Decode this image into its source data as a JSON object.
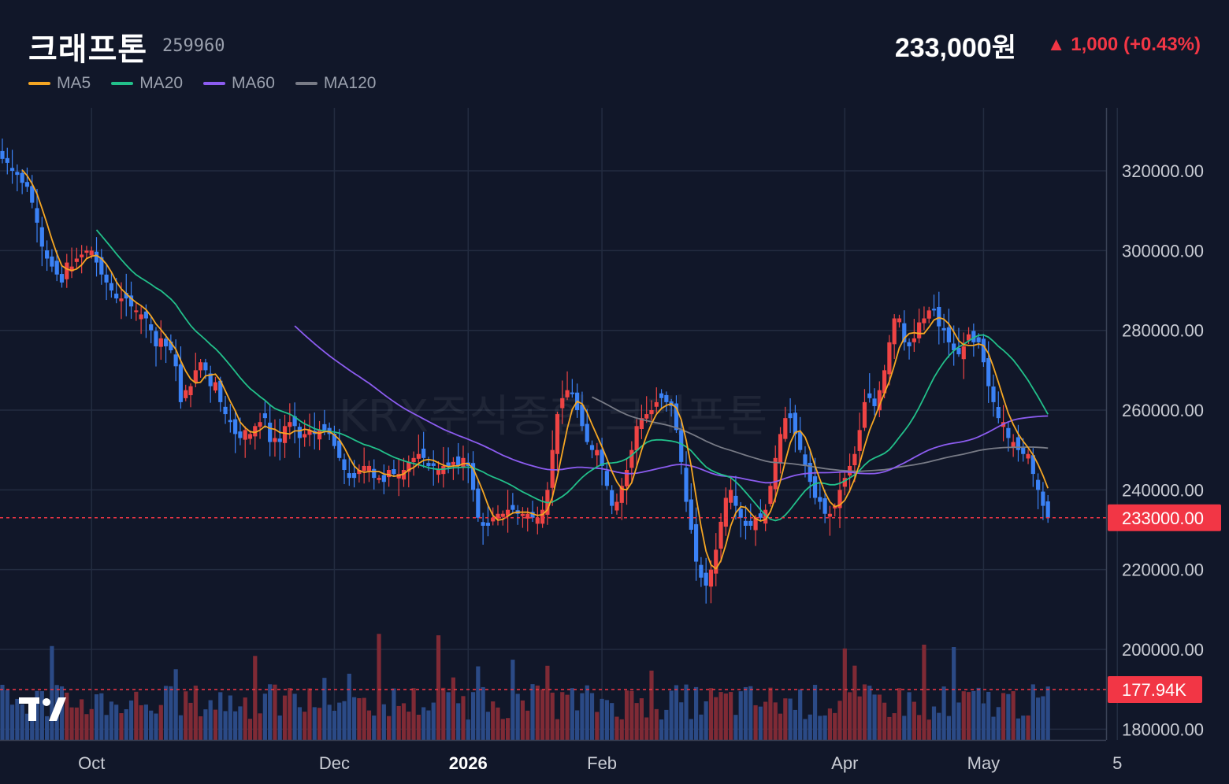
{
  "header": {
    "title": "크래프톤",
    "code": "259960",
    "price": "233,000원",
    "change": "▲ 1,000 (+0.43%)"
  },
  "legend": [
    {
      "label": "MA5",
      "color": "#f5a623"
    },
    {
      "label": "MA20",
      "color": "#22c08a"
    },
    {
      "label": "MA60",
      "color": "#8c5cf0"
    },
    {
      "label": "MA120",
      "color": "#787b86"
    }
  ],
  "watermark": "KRX주식종합  크래프톤",
  "colors": {
    "up": "#ef4444",
    "down": "#3b82f6",
    "background": "#111729",
    "grid": "#232c40",
    "price_tag": "#f23645"
  },
  "logo_text": "TV",
  "chart_data": {
    "type": "candlestick",
    "title": "크래프톤",
    "y_ticks": [
      "320000.00",
      "300000.00",
      "280000.00",
      "260000.00",
      "240000.00",
      "220000.00",
      "200000.00",
      "180000.00"
    ],
    "y_tick_values": [
      320000,
      300000,
      280000,
      260000,
      240000,
      220000,
      200000,
      180000
    ],
    "ylim": [
      177300,
      335800
    ],
    "x_ticks": [
      {
        "label": "Oct",
        "index": 18,
        "bold": false
      },
      {
        "label": "Dec",
        "index": 67,
        "bold": false
      },
      {
        "label": "2026",
        "index": 94,
        "bold": true
      },
      {
        "label": "Feb",
        "index": 121,
        "bold": false
      },
      {
        "label": "Apr",
        "index": 170,
        "bold": false
      },
      {
        "label": "May",
        "index": 198,
        "bold": false
      },
      {
        "label": "5",
        "index": 225,
        "bold": false
      }
    ],
    "last_price": 233000,
    "last_price_label": "233000.00",
    "last_volume_label": "177.94K",
    "closes": [
      323000,
      322000,
      320000,
      319000,
      317000,
      316000,
      312000,
      307000,
      301000,
      298000,
      296000,
      294000,
      292000,
      297000,
      296000,
      298000,
      299000,
      300000,
      300000,
      297000,
      294000,
      292000,
      290000,
      288000,
      288000,
      288000,
      286000,
      285000,
      284000,
      283000,
      280000,
      276000,
      278000,
      276000,
      275000,
      271000,
      262000,
      265000,
      266000,
      270000,
      272000,
      270000,
      266000,
      267000,
      262000,
      259000,
      257000,
      254000,
      253000,
      255000,
      254000,
      256000,
      257000,
      258000,
      252000,
      253000,
      252000,
      256000,
      257000,
      256000,
      253000,
      254000,
      255000,
      254000,
      255000,
      255000,
      254000,
      251000,
      248000,
      245000,
      243000,
      243000,
      245000,
      246000,
      246000,
      243000,
      243000,
      242000,
      245000,
      244000,
      244000,
      245000,
      247000,
      248000,
      249000,
      248000,
      246000,
      246000,
      245000,
      246000,
      246000,
      247000,
      246000,
      248000,
      246000,
      240000,
      233000,
      231000,
      231000,
      233000,
      234000,
      234000,
      235000,
      235000,
      234000,
      234000,
      234000,
      233000,
      233000,
      235000,
      240000,
      250000,
      259000,
      263000,
      265000,
      264000,
      260000,
      256000,
      252000,
      250000,
      250000,
      246000,
      241000,
      236000,
      237000,
      241000,
      245000,
      250000,
      256000,
      258000,
      259000,
      260000,
      262000,
      263000,
      262000,
      261000,
      255000,
      247000,
      237000,
      230000,
      222000,
      218000,
      216000,
      220000,
      225000,
      232000,
      238000,
      240000,
      236000,
      233000,
      231000,
      231000,
      233000,
      233000,
      235000,
      241000,
      248000,
      254000,
      258000,
      258000,
      254000,
      250000,
      246000,
      242000,
      238000,
      237000,
      234000,
      234000,
      236000,
      240000,
      243000,
      246000,
      249000,
      255000,
      262000,
      263000,
      261000,
      265000,
      270000,
      277000,
      283000,
      283000,
      277000,
      276000,
      278000,
      282000,
      283000,
      285000,
      285000,
      281000,
      280000,
      277000,
      275000,
      274000,
      276000,
      279000,
      277000,
      277000,
      272000,
      266000,
      262000,
      258000,
      257000,
      253000,
      252000,
      250000,
      249000,
      249000,
      244000,
      240000,
      236000,
      233000
    ]
  }
}
